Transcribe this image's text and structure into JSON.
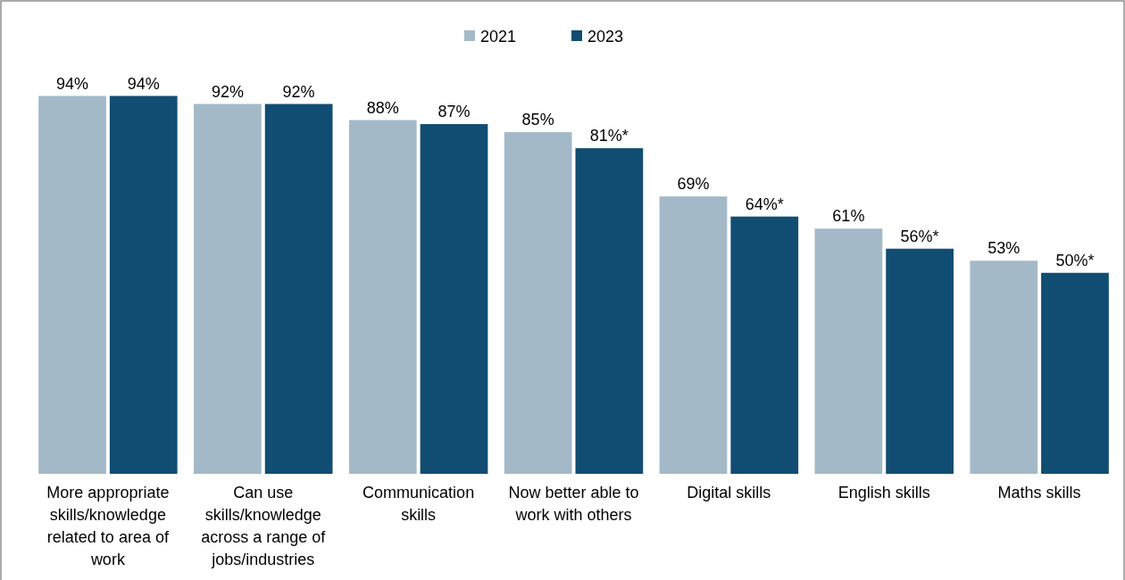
{
  "chart_data": {
    "type": "bar",
    "categories": [
      "More appropriate skills/knowledge related to area of work",
      "Can use skills/knowledge across a range of jobs/industries",
      "Communication skills",
      "Now better able to work with others",
      "Digital skills",
      "English skills",
      "Maths skills"
    ],
    "series": [
      {
        "name": "2021",
        "color": "#a3b9c8",
        "values": [
          94,
          92,
          88,
          85,
          69,
          61,
          53
        ],
        "value_labels": [
          "94%",
          "92%",
          "88%",
          "85%",
          "69%",
          "61%",
          "53%"
        ]
      },
      {
        "name": "2023",
        "color": "#114d72",
        "values": [
          94,
          92,
          87,
          81,
          64,
          56,
          50
        ],
        "value_labels": [
          "94%",
          "92%",
          "87%",
          "81%*",
          "64%*",
          "56%*",
          "50%*"
        ]
      }
    ],
    "legend": "top",
    "grid": false
  }
}
